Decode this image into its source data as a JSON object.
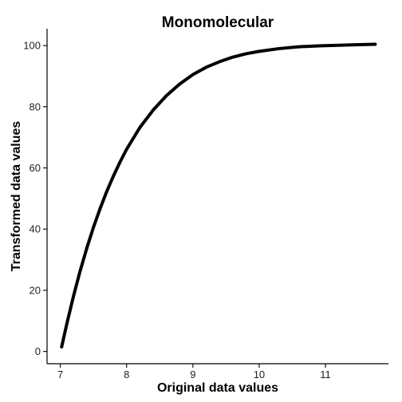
{
  "chart_data": {
    "type": "line",
    "title": "Monomolecular",
    "xlabel": "Original data values",
    "ylabel": "Transformed data values",
    "xlim": [
      6.8,
      11.95
    ],
    "ylim": [
      -4,
      105.5
    ],
    "xticks": [
      7,
      8,
      9,
      10,
      11
    ],
    "yticks": [
      0,
      20,
      40,
      60,
      80,
      100
    ],
    "grid": false,
    "legend": "none",
    "color": "#000000",
    "series": [
      {
        "x": [
          7.02,
          7.1,
          7.2,
          7.3,
          7.4,
          7.5,
          7.6,
          7.7,
          7.8,
          7.9,
          8.0,
          8.2,
          8.4,
          8.6,
          8.8,
          9.0,
          9.2,
          9.4,
          9.6,
          9.8,
          10.0,
          10.3,
          10.6,
          10.9,
          11.2,
          11.5,
          11.75
        ],
        "y": [
          1.5,
          9.2,
          18.2,
          26.4,
          33.8,
          40.6,
          46.7,
          52.3,
          57.3,
          61.9,
          66.1,
          73.2,
          78.9,
          83.6,
          87.4,
          90.5,
          92.9,
          94.7,
          96.2,
          97.3,
          98.1,
          99.0,
          99.6,
          99.9,
          100.1,
          100.3,
          100.4
        ]
      }
    ]
  }
}
